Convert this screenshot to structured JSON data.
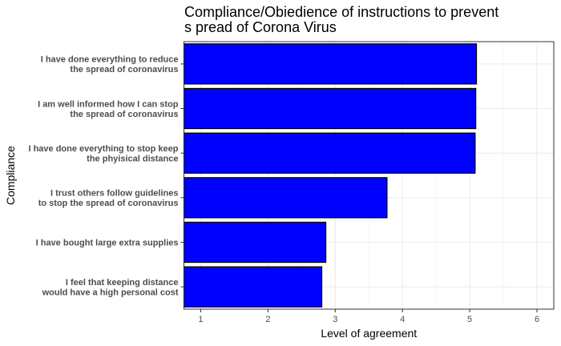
{
  "chart_data": {
    "type": "bar",
    "orientation": "horizontal",
    "title_lines": [
      "Compliance/Obiedience of instructions to prevent",
      "s pread of Corona Virus"
    ],
    "xlabel": "Level of agreement",
    "ylabel": "Compliance",
    "xlim": [
      0.75,
      6.25
    ],
    "xticks": [
      1,
      2,
      3,
      4,
      5,
      6
    ],
    "grid": true,
    "bar_color": "#0000ff",
    "bar_outline": "#000000",
    "categories": [
      [
        "I have done everything to reduce",
        "the spread of coronavirus"
      ],
      [
        "I am well informed how I can stop",
        "the spread of coronavirus"
      ],
      [
        "I have done everything to stop keep",
        "the phyisical distance"
      ],
      [
        "I trust others follow guidelines",
        "to stop the spread of coronavirus"
      ],
      [
        "I have bought large extra supplies"
      ],
      [
        "I feel that keeping distance",
        "would have a high personal cost"
      ]
    ],
    "values": [
      5.1,
      5.09,
      5.08,
      3.77,
      2.86,
      2.8
    ]
  }
}
